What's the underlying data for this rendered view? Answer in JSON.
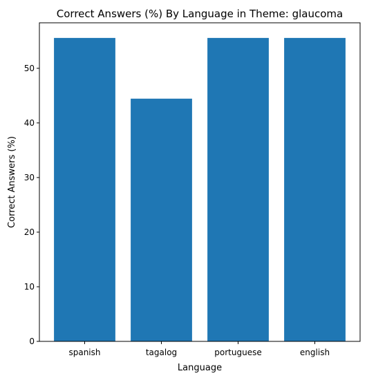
{
  "chart_data": {
    "type": "bar",
    "title": "Correct Answers (%) By Language in Theme: glaucoma",
    "xlabel": "Language",
    "ylabel": "Correct Answers (%)",
    "categories": [
      "spanish",
      "tagalog",
      "portuguese",
      "english"
    ],
    "values": [
      55.56,
      44.44,
      55.56,
      55.56
    ],
    "ylim": [
      0,
      58.33
    ],
    "yticks": [
      0,
      10,
      20,
      30,
      40,
      50
    ],
    "bar_color": "#1f77b4",
    "grid": false
  }
}
